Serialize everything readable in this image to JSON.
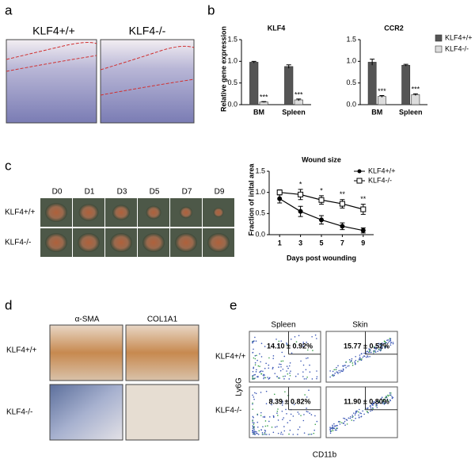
{
  "panel_labels": [
    "a",
    "b",
    "c",
    "d",
    "e"
  ],
  "a": {
    "columns": [
      "KLF4+/+",
      "KLF4-/-"
    ]
  },
  "c": {
    "columns": [
      "D0",
      "D1",
      "D3",
      "D5",
      "D7",
      "D9"
    ],
    "rows": [
      "KLF4+/+",
      "KLF4-/-"
    ]
  },
  "d": {
    "columns": [
      "α-SMA",
      "COL1A1"
    ],
    "rows": [
      "KLF4+/+",
      "KLF4-/-"
    ]
  },
  "e": {
    "columns": [
      "Spleen",
      "Skin"
    ],
    "rows": [
      "KLF4+/+",
      "KLF4-/-"
    ],
    "y_label": "Ly6G",
    "x_label": "CD11b",
    "percentages": [
      [
        "14.10 ± 0.92%",
        "15.77 ± 0.52%"
      ],
      [
        "8.39 ± 0.82%",
        "11.90 ± 0.80%"
      ]
    ]
  },
  "chart_data": [
    {
      "type": "bar",
      "title": "KLF4",
      "y_label": "Relative gene expression",
      "categories": [
        "BM",
        "Spleen"
      ],
      "series": [
        {
          "name": "KLF4+/+",
          "color": "#555555",
          "values": [
            0.98,
            0.88
          ],
          "errors": [
            0.02,
            0.04
          ]
        },
        {
          "name": "KLF4-/-",
          "color": "#dddddd",
          "values": [
            0.06,
            0.11
          ],
          "errors": [
            0.01,
            0.02
          ],
          "annotations": [
            "***",
            "***"
          ]
        }
      ],
      "ylim": [
        0,
        1.5
      ],
      "yticks": [
        {
          "value": 0,
          "label": "0.0"
        },
        {
          "value": 0.5,
          "label": "0.5"
        },
        {
          "value": 1,
          "label": "1.0"
        },
        {
          "value": 1.5,
          "label": "1.5"
        }
      ],
      "legend": false
    },
    {
      "type": "bar",
      "title": "CCR2",
      "categories": [
        "BM",
        "Spleen"
      ],
      "series": [
        {
          "name": "KLF4+/+",
          "color": "#555555",
          "values": [
            0.98,
            0.91
          ],
          "errors": [
            0.07,
            0.02
          ]
        },
        {
          "name": "KLF4-/-",
          "color": "#dddddd",
          "values": [
            0.19,
            0.23
          ],
          "errors": [
            0.02,
            0.02
          ],
          "annotations": [
            "***",
            "***"
          ]
        }
      ],
      "ylim": [
        0,
        1.5
      ],
      "yticks": [
        {
          "value": 0,
          "label": "0.0"
        },
        {
          "value": 0.5,
          "label": "0.5"
        },
        {
          "value": 1,
          "label": "1.0"
        },
        {
          "value": 1.5,
          "label": "1.5"
        }
      ],
      "legend": "right"
    },
    {
      "type": "line",
      "title": "Wound size",
      "x_label": "Days post wounding",
      "y_label": "Fraction of inital area",
      "x": [
        1,
        3,
        5,
        7,
        9
      ],
      "series": [
        {
          "name": "KLF4+/+",
          "color": "#000000",
          "marker": "circle",
          "values": [
            0.85,
            0.55,
            0.35,
            0.2,
            0.1
          ],
          "errors": [
            0.1,
            0.12,
            0.1,
            0.08,
            0.06
          ]
        },
        {
          "name": "KLF4-/-",
          "color": "#000000",
          "marker": "square",
          "values": [
            1.0,
            0.95,
            0.82,
            0.73,
            0.6
          ],
          "errors": [
            0.06,
            0.12,
            0.1,
            0.1,
            0.12
          ]
        }
      ],
      "annotations": [
        null,
        "*",
        "*",
        "**",
        "**"
      ],
      "xlim": [
        0,
        10
      ],
      "xticks": [
        1,
        3,
        5,
        7,
        9
      ],
      "ylim": [
        0,
        1.5
      ],
      "yticks": [
        {
          "value": 0,
          "label": "0.0"
        },
        {
          "value": 0.5,
          "label": "0.5"
        },
        {
          "value": 1,
          "label": "1.0"
        },
        {
          "value": 1.5,
          "label": "1.5"
        }
      ],
      "legend": "upper right"
    }
  ]
}
